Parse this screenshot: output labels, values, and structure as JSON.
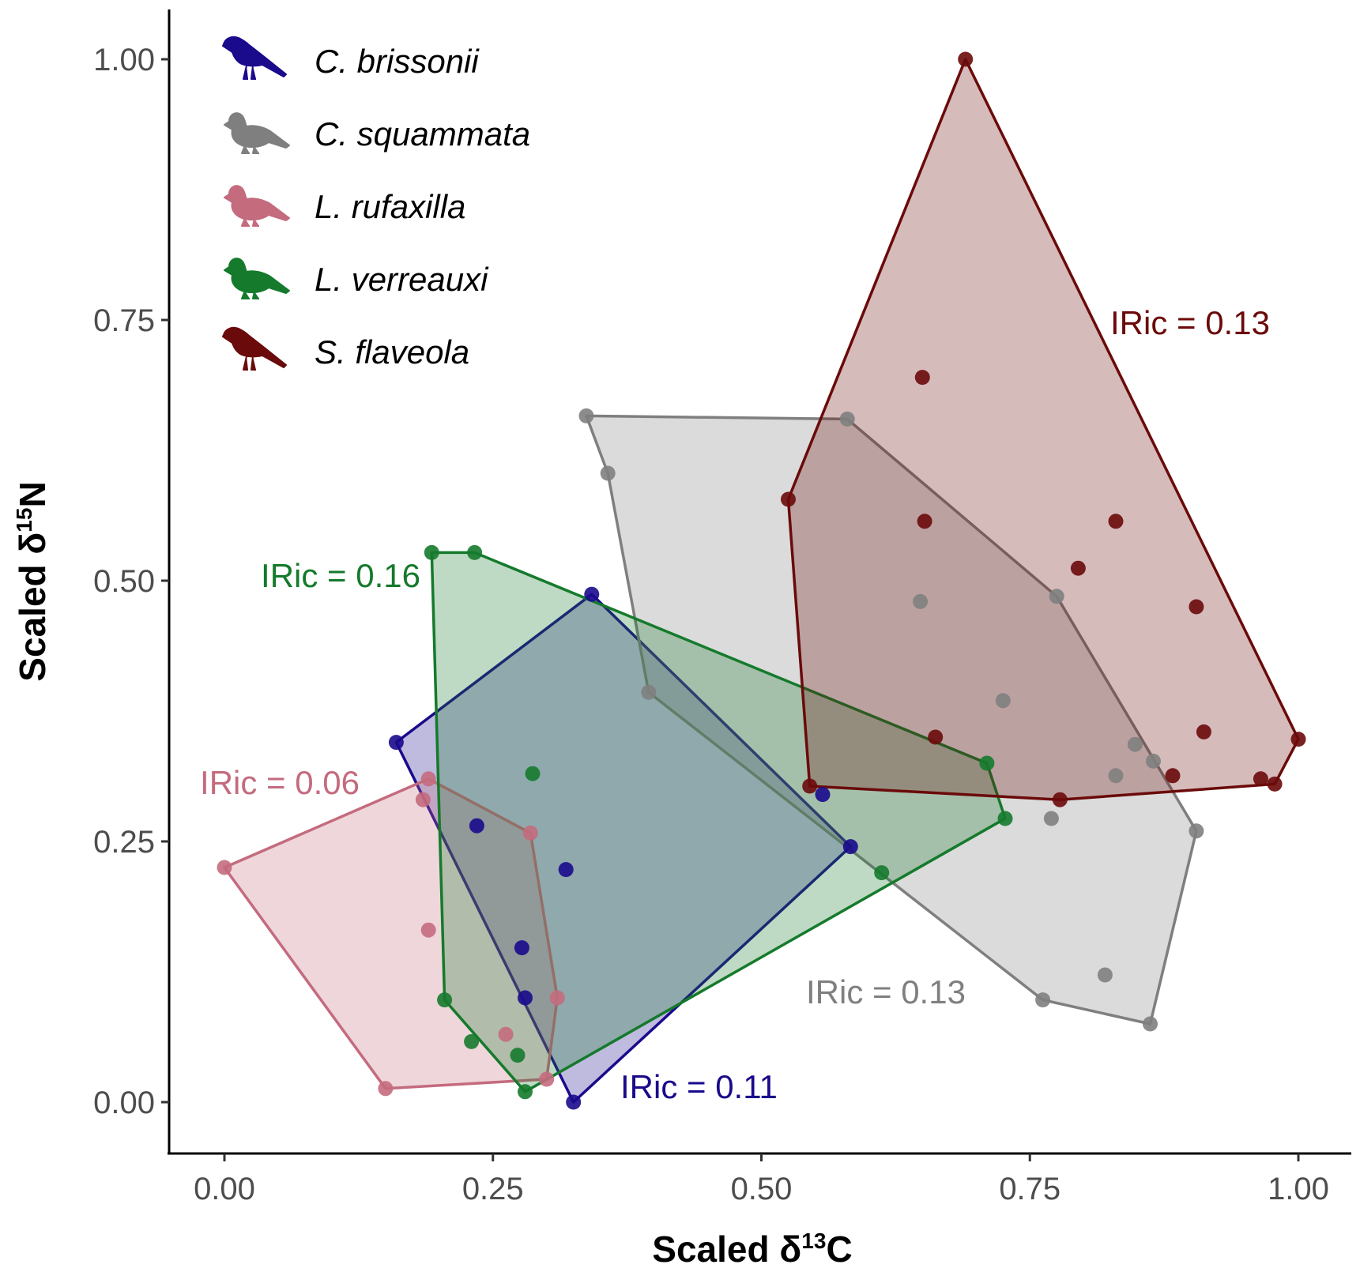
{
  "chart_data": {
    "type": "scatter",
    "xlabel": {
      "prefix": "Scaled  δ",
      "sup": "13",
      "suffix": "C"
    },
    "ylabel": {
      "prefix": "Scaled  δ",
      "sup": "15",
      "suffix": "N"
    },
    "xlim": [
      -0.05,
      1.05
    ],
    "ylim": [
      -0.05,
      1.05
    ],
    "x_ticks": [
      0,
      0.25,
      0.5,
      0.75,
      1
    ],
    "y_ticks": [
      0,
      0.25,
      0.5,
      0.75,
      1
    ],
    "x_tick_labels": [
      "0.00",
      "0.25",
      "0.50",
      "0.75",
      "1.00"
    ],
    "y_tick_labels": [
      "0.00",
      "0.25",
      "0.50",
      "0.75",
      "1.00"
    ],
    "grid": false,
    "legend_position": "top-left",
    "series": [
      {
        "name": "C. brissonii",
        "color": "#1a0a8c",
        "icon": "bird-perched-icon",
        "iric_label": "IRic = 0.11",
        "hull": [
          [
            0.16,
            0.345
          ],
          [
            0.342,
            0.487
          ],
          [
            0.583,
            0.245
          ],
          [
            0.325,
            0.0
          ]
        ],
        "points": [
          [
            0.16,
            0.345
          ],
          [
            0.342,
            0.487
          ],
          [
            0.557,
            0.295
          ],
          [
            0.583,
            0.245
          ],
          [
            0.325,
            0.0
          ],
          [
            0.235,
            0.265
          ],
          [
            0.318,
            0.223
          ],
          [
            0.277,
            0.148
          ],
          [
            0.28,
            0.1
          ]
        ]
      },
      {
        "name": "C. squammata",
        "color": "#7f7f7f",
        "icon": "dove-icon",
        "iric_label": "IRic = 0.13",
        "hull": [
          [
            0.337,
            0.658
          ],
          [
            0.58,
            0.655
          ],
          [
            0.775,
            0.485
          ],
          [
            0.905,
            0.26
          ],
          [
            0.862,
            0.075
          ],
          [
            0.762,
            0.098
          ],
          [
            0.395,
            0.393
          ],
          [
            0.357,
            0.603
          ]
        ],
        "points": [
          [
            0.337,
            0.658
          ],
          [
            0.58,
            0.655
          ],
          [
            0.357,
            0.603
          ],
          [
            0.775,
            0.485
          ],
          [
            0.648,
            0.48
          ],
          [
            0.395,
            0.393
          ],
          [
            0.725,
            0.385
          ],
          [
            0.848,
            0.343
          ],
          [
            0.865,
            0.327
          ],
          [
            0.83,
            0.313
          ],
          [
            0.77,
            0.272
          ],
          [
            0.905,
            0.26
          ],
          [
            0.82,
            0.122
          ],
          [
            0.762,
            0.098
          ],
          [
            0.862,
            0.075
          ]
        ]
      },
      {
        "name": "L. rufaxilla",
        "color": "#c46b7e",
        "icon": "dove-icon",
        "iric_label": "IRic = 0.06",
        "hull": [
          [
            0.0,
            0.225
          ],
          [
            0.19,
            0.31
          ],
          [
            0.285,
            0.258
          ],
          [
            0.31,
            0.1
          ],
          [
            0.3,
            0.022
          ],
          [
            0.15,
            0.013
          ]
        ],
        "points": [
          [
            0.0,
            0.225
          ],
          [
            0.19,
            0.31
          ],
          [
            0.185,
            0.29
          ],
          [
            0.285,
            0.258
          ],
          [
            0.19,
            0.165
          ],
          [
            0.31,
            0.1
          ],
          [
            0.262,
            0.065
          ],
          [
            0.3,
            0.022
          ],
          [
            0.15,
            0.013
          ]
        ]
      },
      {
        "name": "L. verreauxi",
        "color": "#157a2c",
        "icon": "dove-icon",
        "iric_label": "IRic = 0.16",
        "hull": [
          [
            0.193,
            0.527
          ],
          [
            0.233,
            0.527
          ],
          [
            0.71,
            0.325
          ],
          [
            0.727,
            0.272
          ],
          [
            0.28,
            0.01
          ],
          [
            0.205,
            0.098
          ]
        ],
        "points": [
          [
            0.193,
            0.527
          ],
          [
            0.233,
            0.527
          ],
          [
            0.287,
            0.315
          ],
          [
            0.71,
            0.325
          ],
          [
            0.727,
            0.272
          ],
          [
            0.612,
            0.22
          ],
          [
            0.205,
            0.098
          ],
          [
            0.23,
            0.058
          ],
          [
            0.273,
            0.045
          ],
          [
            0.28,
            0.01
          ]
        ]
      },
      {
        "name": "S. flaveola",
        "color": "#6b0a0a",
        "icon": "bird-perched-icon",
        "iric_label": "IRic = 0.13",
        "hull": [
          [
            0.69,
            1.0
          ],
          [
            1.0,
            0.348
          ],
          [
            0.978,
            0.305
          ],
          [
            0.778,
            0.29
          ],
          [
            0.545,
            0.303
          ],
          [
            0.525,
            0.578
          ]
        ],
        "points": [
          [
            0.69,
            1.0
          ],
          [
            0.65,
            0.695
          ],
          [
            0.525,
            0.578
          ],
          [
            0.652,
            0.557
          ],
          [
            0.83,
            0.557
          ],
          [
            0.795,
            0.512
          ],
          [
            0.905,
            0.475
          ],
          [
            0.662,
            0.35
          ],
          [
            0.912,
            0.355
          ],
          [
            1.0,
            0.348
          ],
          [
            0.883,
            0.313
          ],
          [
            0.965,
            0.31
          ],
          [
            0.978,
            0.305
          ],
          [
            0.778,
            0.29
          ],
          [
            0.545,
            0.303
          ]
        ]
      }
    ]
  }
}
